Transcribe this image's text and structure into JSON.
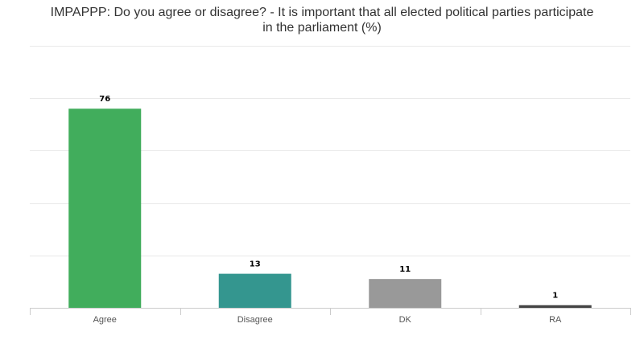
{
  "chart_data": {
    "type": "bar",
    "title_lines": [
      "IMPAPPP: Do you agree or disagree? - It is important that all elected political parties participate",
      "in the parliament (%)"
    ],
    "categories": [
      "Agree",
      "Disagree",
      "DK",
      "RA"
    ],
    "values": [
      76,
      13,
      11,
      1
    ],
    "data_labels": [
      "76",
      "13",
      "11",
      "1"
    ],
    "colors": [
      "#41ad5c",
      "#34968f",
      "#999999",
      "#444444"
    ],
    "ylim": [
      0,
      100
    ],
    "grid": true,
    "xlabel": "",
    "ylabel": ""
  }
}
